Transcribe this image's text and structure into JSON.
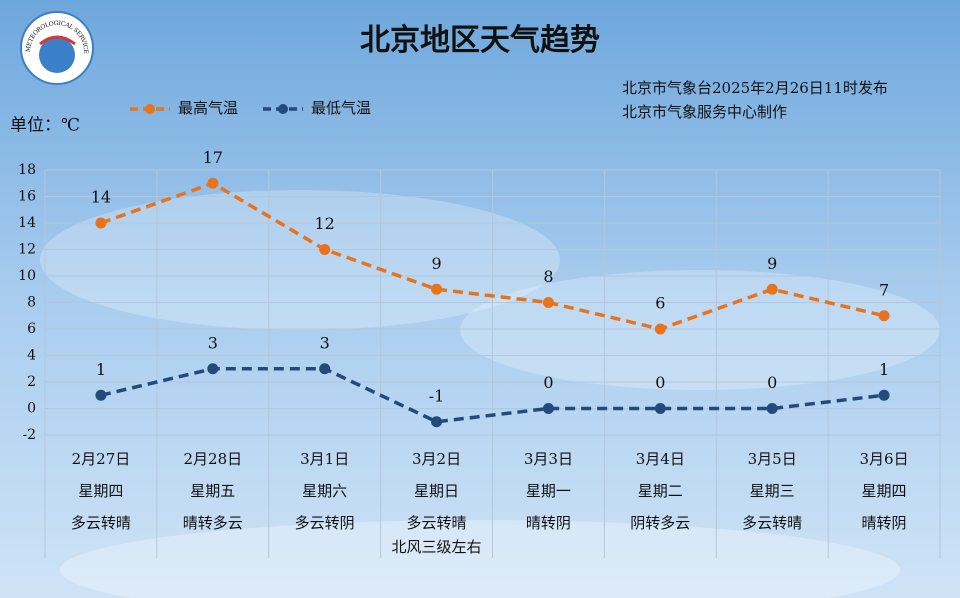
{
  "chart_data": {
    "type": "line",
    "title": "北京地区天气趋势",
    "issuer": [
      "北京市气象台2025年2月26日11时发布",
      "北京市气象服务中心制作"
    ],
    "unit_label": "单位：℃",
    "logo_text": "METEOROLOGICAL SERVICE",
    "categories": [
      "2月27日",
      "2月28日",
      "3月1日",
      "3月2日",
      "3月3日",
      "3月4日",
      "3月5日",
      "3月6日"
    ],
    "weekdays": [
      "星期四",
      "星期五",
      "星期六",
      "星期日",
      "星期一",
      "星期二",
      "星期三",
      "星期四"
    ],
    "weather": [
      [
        "多云转晴"
      ],
      [
        "晴转多云"
      ],
      [
        "多云转阴"
      ],
      [
        "多云转晴",
        "北风三级左右"
      ],
      [
        "晴转阴"
      ],
      [
        "阴转多云"
      ],
      [
        "多云转晴"
      ],
      [
        "晴转阴"
      ]
    ],
    "series": [
      {
        "name": "最高气温",
        "color": "#e8731c",
        "values": [
          14,
          17,
          12,
          9,
          8,
          6,
          9,
          7
        ]
      },
      {
        "name": "最低气温",
        "color": "#234a7a",
        "values": [
          1,
          3,
          3,
          -1,
          0,
          0,
          0,
          1
        ]
      }
    ],
    "ylim": [
      -2,
      18
    ],
    "yticks": [
      -2,
      0,
      2,
      4,
      6,
      8,
      10,
      12,
      14,
      16,
      18
    ],
    "grid": true
  }
}
